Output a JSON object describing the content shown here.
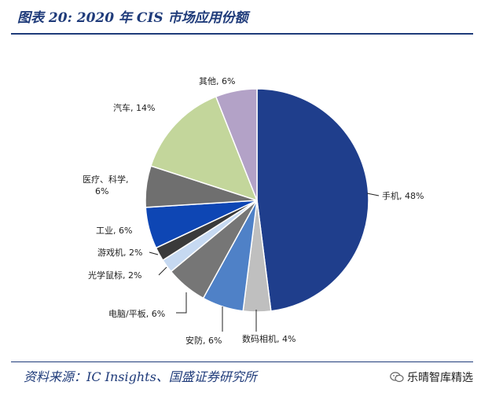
{
  "header": {
    "title": "图表 20:  2020 年 CIS 市场应用份额"
  },
  "footer": {
    "source": "资料来源：IC Insights、国盛证券研究所",
    "watermark": "乐晴智库精选",
    "watermark_icon": "wechat-icon"
  },
  "chart_data": {
    "type": "pie",
    "title": "",
    "slices": [
      {
        "name": "手机",
        "value": 48,
        "label": "手机, 48%",
        "color": "#1f3e8c"
      },
      {
        "name": "数码相机",
        "value": 4,
        "label": "数码相机, 4%",
        "color": "#bfbfbf"
      },
      {
        "name": "安防",
        "value": 6,
        "label": "安防, 6%",
        "color": "#4f81c7"
      },
      {
        "name": "电脑/平板",
        "value": 6,
        "label": "电脑/平板, 6%",
        "color": "#767676"
      },
      {
        "name": "光学鼠标",
        "value": 2,
        "label": "光学鼠标, 2%",
        "color": "#c6d9f1"
      },
      {
        "name": "游戏机",
        "value": 2,
        "label": "游戏机, 2%",
        "color": "#3a3a3a"
      },
      {
        "name": "工业",
        "value": 6,
        "label": "工业, 6%",
        "color": "#0e46b4"
      },
      {
        "name": "医疗、科学",
        "value": 6,
        "label": [
          "医疗、科学,",
          "6%"
        ],
        "color": "#6f6f6f"
      },
      {
        "name": "汽车",
        "value": 14,
        "label": "汽车, 14%",
        "color": "#c3d69b"
      },
      {
        "name": "其他",
        "value": 6,
        "label": "其他, 6%",
        "color": "#b3a2c7"
      }
    ],
    "legend": "none",
    "start": "12 o'clock",
    "direction": "clockwise"
  }
}
